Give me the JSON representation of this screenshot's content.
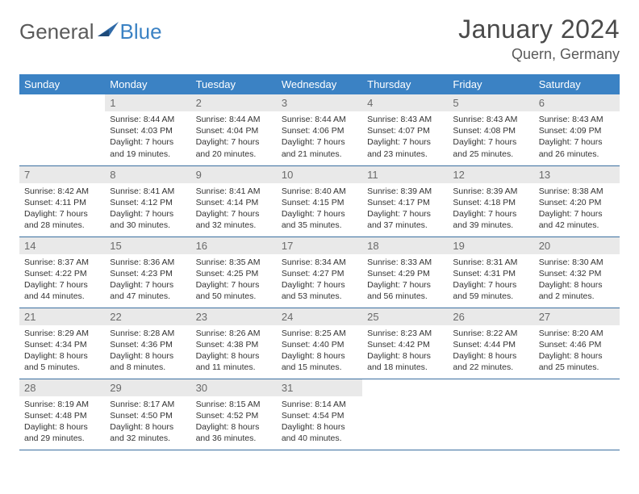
{
  "brand": {
    "part1": "General",
    "part2": "Blue"
  },
  "title": "January 2024",
  "location": "Quern, Germany",
  "colors": {
    "header_bg": "#3b82c4",
    "header_text": "#ffffff",
    "daynum_bg": "#e9e9e9",
    "daynum_text": "#6a6a6a",
    "row_border": "#3b6fa0",
    "body_text": "#333333",
    "logo_gray": "#5a5a5a",
    "logo_blue": "#3b82c4"
  },
  "typography": {
    "month_title_size": 32,
    "location_size": 18,
    "weekday_size": 13,
    "daynum_size": 13,
    "cell_text_size": 10.5
  },
  "week_start": "Sunday",
  "weekdays": [
    "Sunday",
    "Monday",
    "Tuesday",
    "Wednesday",
    "Thursday",
    "Friday",
    "Saturday"
  ],
  "grid": {
    "rows": 5,
    "cols": 7
  },
  "days": [
    {
      "n": "",
      "empty": true
    },
    {
      "n": "1",
      "sunrise": "Sunrise: 8:44 AM",
      "sunset": "Sunset: 4:03 PM",
      "day1": "Daylight: 7 hours",
      "day2": "and 19 minutes."
    },
    {
      "n": "2",
      "sunrise": "Sunrise: 8:44 AM",
      "sunset": "Sunset: 4:04 PM",
      "day1": "Daylight: 7 hours",
      "day2": "and 20 minutes."
    },
    {
      "n": "3",
      "sunrise": "Sunrise: 8:44 AM",
      "sunset": "Sunset: 4:06 PM",
      "day1": "Daylight: 7 hours",
      "day2": "and 21 minutes."
    },
    {
      "n": "4",
      "sunrise": "Sunrise: 8:43 AM",
      "sunset": "Sunset: 4:07 PM",
      "day1": "Daylight: 7 hours",
      "day2": "and 23 minutes."
    },
    {
      "n": "5",
      "sunrise": "Sunrise: 8:43 AM",
      "sunset": "Sunset: 4:08 PM",
      "day1": "Daylight: 7 hours",
      "day2": "and 25 minutes."
    },
    {
      "n": "6",
      "sunrise": "Sunrise: 8:43 AM",
      "sunset": "Sunset: 4:09 PM",
      "day1": "Daylight: 7 hours",
      "day2": "and 26 minutes."
    },
    {
      "n": "7",
      "sunrise": "Sunrise: 8:42 AM",
      "sunset": "Sunset: 4:11 PM",
      "day1": "Daylight: 7 hours",
      "day2": "and 28 minutes."
    },
    {
      "n": "8",
      "sunrise": "Sunrise: 8:41 AM",
      "sunset": "Sunset: 4:12 PM",
      "day1": "Daylight: 7 hours",
      "day2": "and 30 minutes."
    },
    {
      "n": "9",
      "sunrise": "Sunrise: 8:41 AM",
      "sunset": "Sunset: 4:14 PM",
      "day1": "Daylight: 7 hours",
      "day2": "and 32 minutes."
    },
    {
      "n": "10",
      "sunrise": "Sunrise: 8:40 AM",
      "sunset": "Sunset: 4:15 PM",
      "day1": "Daylight: 7 hours",
      "day2": "and 35 minutes."
    },
    {
      "n": "11",
      "sunrise": "Sunrise: 8:39 AM",
      "sunset": "Sunset: 4:17 PM",
      "day1": "Daylight: 7 hours",
      "day2": "and 37 minutes."
    },
    {
      "n": "12",
      "sunrise": "Sunrise: 8:39 AM",
      "sunset": "Sunset: 4:18 PM",
      "day1": "Daylight: 7 hours",
      "day2": "and 39 minutes."
    },
    {
      "n": "13",
      "sunrise": "Sunrise: 8:38 AM",
      "sunset": "Sunset: 4:20 PM",
      "day1": "Daylight: 7 hours",
      "day2": "and 42 minutes."
    },
    {
      "n": "14",
      "sunrise": "Sunrise: 8:37 AM",
      "sunset": "Sunset: 4:22 PM",
      "day1": "Daylight: 7 hours",
      "day2": "and 44 minutes."
    },
    {
      "n": "15",
      "sunrise": "Sunrise: 8:36 AM",
      "sunset": "Sunset: 4:23 PM",
      "day1": "Daylight: 7 hours",
      "day2": "and 47 minutes."
    },
    {
      "n": "16",
      "sunrise": "Sunrise: 8:35 AM",
      "sunset": "Sunset: 4:25 PM",
      "day1": "Daylight: 7 hours",
      "day2": "and 50 minutes."
    },
    {
      "n": "17",
      "sunrise": "Sunrise: 8:34 AM",
      "sunset": "Sunset: 4:27 PM",
      "day1": "Daylight: 7 hours",
      "day2": "and 53 minutes."
    },
    {
      "n": "18",
      "sunrise": "Sunrise: 8:33 AM",
      "sunset": "Sunset: 4:29 PM",
      "day1": "Daylight: 7 hours",
      "day2": "and 56 minutes."
    },
    {
      "n": "19",
      "sunrise": "Sunrise: 8:31 AM",
      "sunset": "Sunset: 4:31 PM",
      "day1": "Daylight: 7 hours",
      "day2": "and 59 minutes."
    },
    {
      "n": "20",
      "sunrise": "Sunrise: 8:30 AM",
      "sunset": "Sunset: 4:32 PM",
      "day1": "Daylight: 8 hours",
      "day2": "and 2 minutes."
    },
    {
      "n": "21",
      "sunrise": "Sunrise: 8:29 AM",
      "sunset": "Sunset: 4:34 PM",
      "day1": "Daylight: 8 hours",
      "day2": "and 5 minutes."
    },
    {
      "n": "22",
      "sunrise": "Sunrise: 8:28 AM",
      "sunset": "Sunset: 4:36 PM",
      "day1": "Daylight: 8 hours",
      "day2": "and 8 minutes."
    },
    {
      "n": "23",
      "sunrise": "Sunrise: 8:26 AM",
      "sunset": "Sunset: 4:38 PM",
      "day1": "Daylight: 8 hours",
      "day2": "and 11 minutes."
    },
    {
      "n": "24",
      "sunrise": "Sunrise: 8:25 AM",
      "sunset": "Sunset: 4:40 PM",
      "day1": "Daylight: 8 hours",
      "day2": "and 15 minutes."
    },
    {
      "n": "25",
      "sunrise": "Sunrise: 8:23 AM",
      "sunset": "Sunset: 4:42 PM",
      "day1": "Daylight: 8 hours",
      "day2": "and 18 minutes."
    },
    {
      "n": "26",
      "sunrise": "Sunrise: 8:22 AM",
      "sunset": "Sunset: 4:44 PM",
      "day1": "Daylight: 8 hours",
      "day2": "and 22 minutes."
    },
    {
      "n": "27",
      "sunrise": "Sunrise: 8:20 AM",
      "sunset": "Sunset: 4:46 PM",
      "day1": "Daylight: 8 hours",
      "day2": "and 25 minutes."
    },
    {
      "n": "28",
      "sunrise": "Sunrise: 8:19 AM",
      "sunset": "Sunset: 4:48 PM",
      "day1": "Daylight: 8 hours",
      "day2": "and 29 minutes."
    },
    {
      "n": "29",
      "sunrise": "Sunrise: 8:17 AM",
      "sunset": "Sunset: 4:50 PM",
      "day1": "Daylight: 8 hours",
      "day2": "and 32 minutes."
    },
    {
      "n": "30",
      "sunrise": "Sunrise: 8:15 AM",
      "sunset": "Sunset: 4:52 PM",
      "day1": "Daylight: 8 hours",
      "day2": "and 36 minutes."
    },
    {
      "n": "31",
      "sunrise": "Sunrise: 8:14 AM",
      "sunset": "Sunset: 4:54 PM",
      "day1": "Daylight: 8 hours",
      "day2": "and 40 minutes."
    },
    {
      "n": "",
      "empty": true
    },
    {
      "n": "",
      "empty": true
    },
    {
      "n": "",
      "empty": true
    }
  ]
}
